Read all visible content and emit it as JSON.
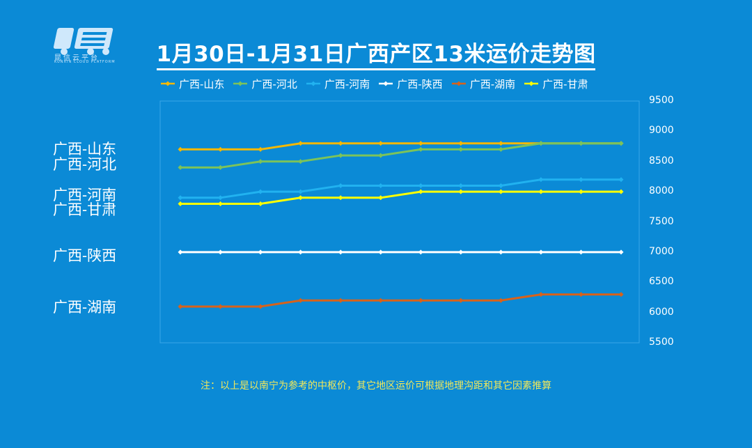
{
  "logo": {
    "text": "昆信云平台",
    "sub": "KUNXIN CLOUD PLATFORM"
  },
  "title": "1月30日-1月31日广西产区13米运价走势图",
  "note": "注：以上是以南宁为参考的中枢价，其它地区运价可根据地理沟距和其它因素推算",
  "colors": {
    "background": "#0b8ad6"
  },
  "side_labels": [
    "广西-山东",
    "广西-河北",
    "广西-河南",
    "广西-甘肃",
    "广西-陕西",
    "广西-湖南"
  ],
  "chart_data": {
    "type": "line",
    "title": "1月30日-1月31日广西产区13米运价走势图",
    "xlabel": "",
    "ylabel": "",
    "ylim": [
      5500,
      9500
    ],
    "yticks": [
      5500,
      6000,
      6500,
      7000,
      7500,
      8000,
      8500,
      9000,
      9500
    ],
    "y_axis_side": "right",
    "legend_position": "top",
    "grid": false,
    "x": [
      1,
      2,
      3,
      4,
      5,
      6,
      7,
      8,
      9,
      10,
      11,
      12
    ],
    "series": [
      {
        "name": "广西-山东",
        "color": "#f5b800",
        "values": [
          8700,
          8700,
          8700,
          8800,
          8800,
          8800,
          8800,
          8800,
          8800,
          8800,
          8800,
          8800
        ]
      },
      {
        "name": "广西-河北",
        "color": "#7cc35a",
        "values": [
          8400,
          8400,
          8500,
          8500,
          8600,
          8600,
          8700,
          8700,
          8700,
          8800,
          8800,
          8800
        ]
      },
      {
        "name": "广西-河南",
        "color": "#21b2f0",
        "values": [
          7900,
          7900,
          8000,
          8000,
          8100,
          8100,
          8100,
          8100,
          8100,
          8200,
          8200,
          8200
        ]
      },
      {
        "name": "广西-陕西",
        "color": "#ffffff",
        "values": [
          7000,
          7000,
          7000,
          7000,
          7000,
          7000,
          7000,
          7000,
          7000,
          7000,
          7000,
          7000
        ]
      },
      {
        "name": "广西-湖南",
        "color": "#d8621a",
        "values": [
          6100,
          6100,
          6100,
          6200,
          6200,
          6200,
          6200,
          6200,
          6200,
          6300,
          6300,
          6300
        ]
      },
      {
        "name": "广西-甘肃",
        "color": "#ffff00",
        "values": [
          7800,
          7800,
          7800,
          7900,
          7900,
          7900,
          8000,
          8000,
          8000,
          8000,
          8000,
          8000
        ]
      }
    ]
  }
}
